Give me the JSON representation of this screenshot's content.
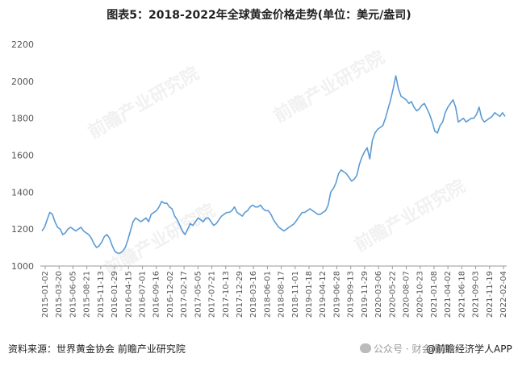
{
  "title": "图表5：2018-2022年全球黄金价格走势(单位：美元/盎司)",
  "footer": {
    "source": "资料来源：世界黄金协会 前瞻产业研究院",
    "wechat": "公众号 · 财会报告",
    "app": "@前瞻经济学人APP"
  },
  "watermark": "前瞻产业研究院",
  "colors": {
    "line": "#5B9BD5",
    "axis": "#999999"
  },
  "chart_data": {
    "type": "line",
    "title": "图表5：2018-2022年全球黄金价格走势(单位：美元/盎司)",
    "xlabel": "",
    "ylabel": "",
    "ylim": [
      1000,
      2200
    ],
    "yticks": [
      1000,
      1200,
      1400,
      1600,
      1800,
      2000,
      2200
    ],
    "grid": false,
    "xtick_labels": [
      "2015-01-02",
      "2015-03-20",
      "2015-06-05",
      "2015-08-21",
      "2015-11-13",
      "2016-01-29",
      "2016-04-15",
      "2016-07-01",
      "2016-09-16",
      "2016-12-02",
      "2017-02-17",
      "2017-05-05",
      "2017-07-21",
      "2017-10-13",
      "2017-12-29",
      "2018-03-16",
      "2018-06-01",
      "2018-08-17",
      "2018-11-01",
      "2019-01-18",
      "2019-04-12",
      "2019-06-28",
      "2019-09-13",
      "2019-11-29",
      "2020-03-06",
      "2020-05-22",
      "2020-08-07",
      "2020-10-23",
      "2021-01-08",
      "2021-04-02",
      "2021-06-18",
      "2021-09-03",
      "2021-11-19",
      "2022-02-04"
    ],
    "series": [
      {
        "values": [
          1190,
          1210,
          1250,
          1290,
          1280,
          1240,
          1210,
          1200,
          1170,
          1180,
          1200,
          1210,
          1200,
          1190,
          1200,
          1210,
          1190,
          1180,
          1170,
          1150,
          1120,
          1100,
          1110,
          1130,
          1160,
          1170,
          1150,
          1110,
          1080,
          1070,
          1070,
          1080,
          1100,
          1140,
          1190,
          1240,
          1260,
          1250,
          1240,
          1250,
          1260,
          1240,
          1280,
          1290,
          1300,
          1320,
          1350,
          1340,
          1340,
          1320,
          1310,
          1270,
          1250,
          1220,
          1190,
          1170,
          1200,
          1230,
          1220,
          1240,
          1260,
          1250,
          1240,
          1260,
          1260,
          1240,
          1220,
          1230,
          1250,
          1270,
          1280,
          1290,
          1290,
          1300,
          1320,
          1290,
          1280,
          1270,
          1290,
          1300,
          1320,
          1330,
          1320,
          1320,
          1330,
          1310,
          1300,
          1300,
          1280,
          1250,
          1230,
          1210,
          1200,
          1190,
          1200,
          1210,
          1220,
          1230,
          1250,
          1270,
          1290,
          1290,
          1300,
          1310,
          1300,
          1290,
          1280,
          1280,
          1290,
          1300,
          1330,
          1400,
          1420,
          1450,
          1500,
          1520,
          1510,
          1500,
          1480,
          1460,
          1470,
          1490,
          1550,
          1590,
          1620,
          1640,
          1580,
          1680,
          1720,
          1740,
          1750,
          1760,
          1800,
          1850,
          1900,
          1960,
          2030,
          1960,
          1920,
          1910,
          1900,
          1880,
          1890,
          1860,
          1840,
          1850,
          1870,
          1880,
          1850,
          1820,
          1780,
          1730,
          1720,
          1760,
          1780,
          1830,
          1860,
          1880,
          1900,
          1860,
          1780,
          1790,
          1800,
          1780,
          1790,
          1800,
          1800,
          1820,
          1860,
          1800,
          1780,
          1790,
          1800,
          1810,
          1830,
          1820,
          1810,
          1830,
          1810
        ]
      }
    ]
  }
}
